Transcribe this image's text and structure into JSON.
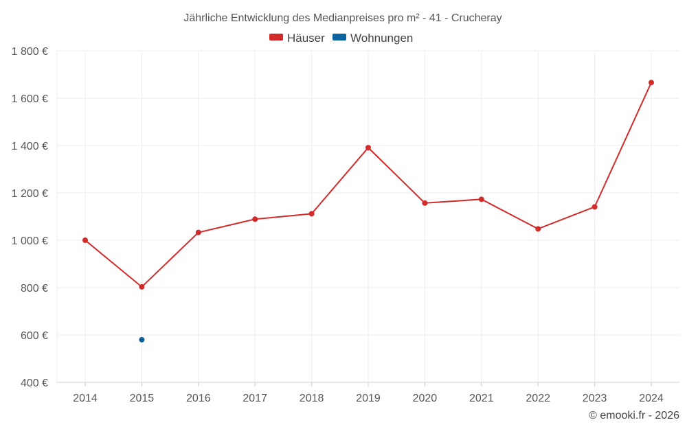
{
  "chart_data": {
    "type": "line",
    "title": "Jährliche Entwicklung des Medianpreises pro m² - 41 - Crucheray",
    "categories": [
      "2014",
      "2015",
      "2016",
      "2017",
      "2018",
      "2019",
      "2020",
      "2021",
      "2022",
      "2023",
      "2024"
    ],
    "series": [
      {
        "name": "Häuser",
        "color": "#d32a2a",
        "values": [
          1000,
          803,
          1033,
          1089,
          1112,
          1391,
          1157,
          1173,
          1048,
          1141,
          1666
        ]
      },
      {
        "name": "Wohnungen",
        "color": "#0b64a0",
        "values": [
          null,
          580,
          null,
          null,
          null,
          null,
          null,
          null,
          null,
          null,
          null
        ]
      }
    ],
    "ylim": [
      400,
      1800
    ],
    "y_ticks": [
      400,
      600,
      800,
      1000,
      1200,
      1400,
      1600,
      1800
    ],
    "y_tick_labels": [
      "400 €",
      "600 €",
      "800 €",
      "1 000 €",
      "1 200 €",
      "1 400 €",
      "1 600 €",
      "1 800 €"
    ],
    "legend_position": "top-center",
    "grid": true
  },
  "credit": "© emooki.fr - 2026"
}
